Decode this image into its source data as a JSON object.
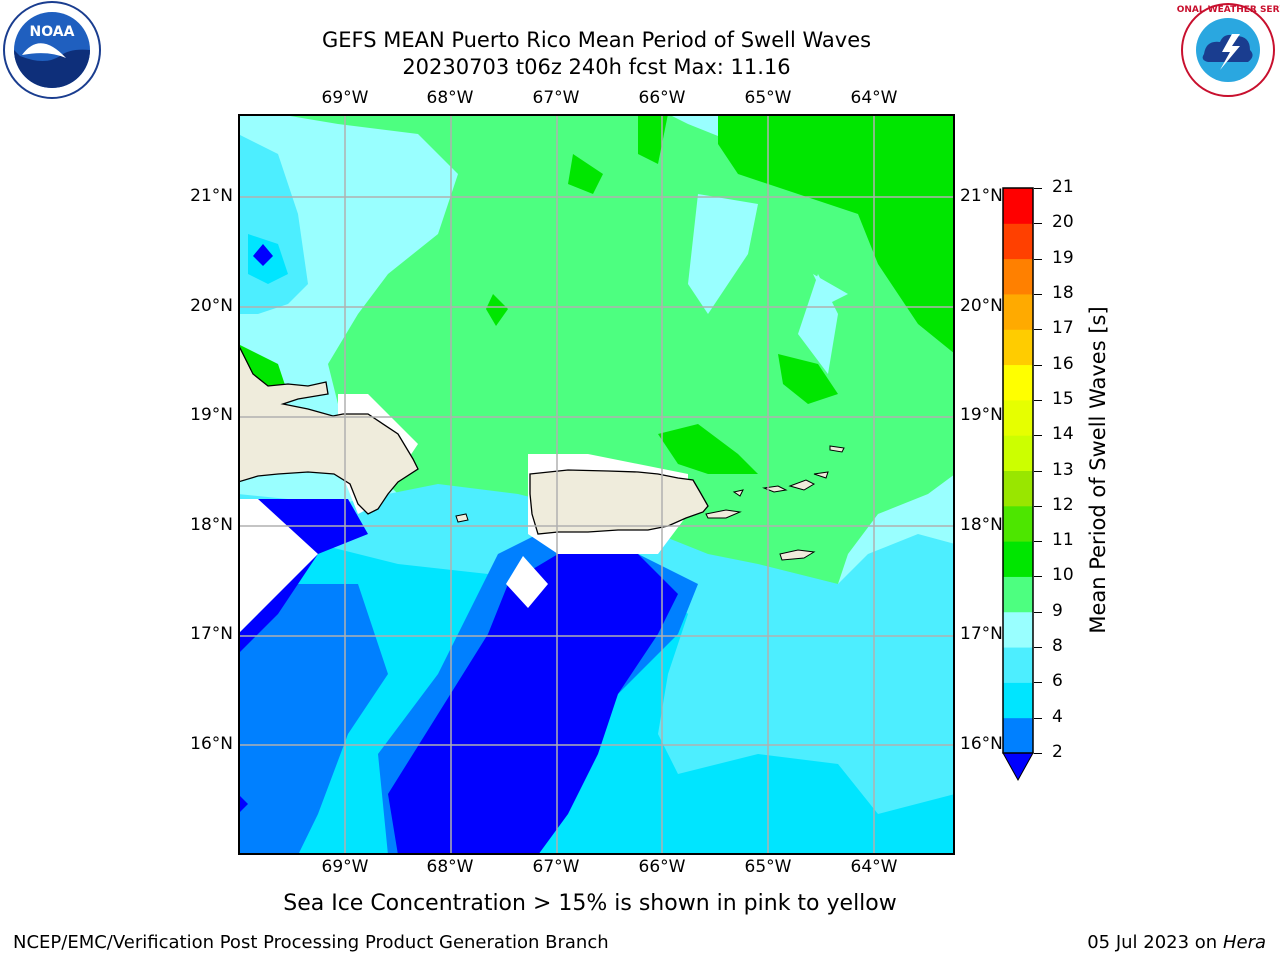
{
  "title": {
    "line1": "GEFS MEAN Puerto Rico Mean Period of Swell Waves",
    "line2": "20230703 t06z 240h fcst   Max: 11.16"
  },
  "map": {
    "lon_ticks": [
      "69°W",
      "68°W",
      "67°W",
      "66°W",
      "65°W",
      "64°W"
    ],
    "lat_ticks": [
      "21°N",
      "20°N",
      "19°N",
      "18°N",
      "17°N",
      "16°N"
    ],
    "land_color": "#efecdc",
    "grid_color": "#b0b0b0"
  },
  "colorbar": {
    "label": "Mean Period of Swell Waves [s]",
    "ticks": [
      "2",
      "4",
      "6",
      "8",
      "9",
      "10",
      "11",
      "12",
      "13",
      "14",
      "15",
      "16",
      "17",
      "18",
      "19",
      "20",
      "21"
    ],
    "colors": [
      "#0000ff",
      "#0080ff",
      "#00e5ff",
      "#4deeff",
      "#99ffff",
      "#4dff80",
      "#00e600",
      "#4de600",
      "#99e600",
      "#ccff00",
      "#e6ff00",
      "#ffff00",
      "#ffcc00",
      "#ffaa00",
      "#ff8000",
      "#ff4000",
      "#ff0000"
    ]
  },
  "caption": "Sea Ice Concentration > 15% is shown in pink to yellow",
  "footer": {
    "left": "NCEP/EMC/Verification Post Processing Product Generation Branch",
    "right_prefix": "05 Jul 2023 on ",
    "right_host": "Hera"
  },
  "logos": {
    "noaa_text": "NOAA",
    "nws_text": "NATIONAL WEATHER SERVICE"
  }
}
